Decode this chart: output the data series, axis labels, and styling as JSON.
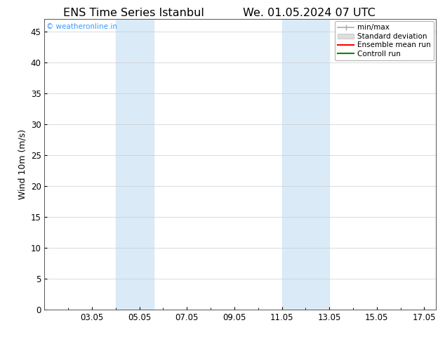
{
  "title_left": "ENS Time Series Istanbul",
  "title_right": "We. 01.05.2024 07 UTC",
  "ylabel": "Wind 10m (m/s)",
  "ylim": [
    0,
    47
  ],
  "yticks": [
    0,
    5,
    10,
    15,
    20,
    25,
    30,
    35,
    40,
    45
  ],
  "xlim": [
    1.0,
    17.5
  ],
  "xtick_labels": [
    "03.05",
    "05.05",
    "07.05",
    "09.05",
    "11.05",
    "13.05",
    "15.05",
    "17.05"
  ],
  "xtick_positions": [
    3,
    5,
    7,
    9,
    11,
    13,
    15,
    17
  ],
  "shaded_bands": [
    {
      "x_start": 4.0,
      "x_end": 5.6
    },
    {
      "x_start": 11.0,
      "x_end": 13.0
    }
  ],
  "shaded_color": "#daeaf7",
  "background_color": "#ffffff",
  "plot_bg_color": "#ffffff",
  "watermark_text": "© weatheronline.in",
  "watermark_color": "#3399ff",
  "legend_entries": [
    {
      "label": "min/max"
    },
    {
      "label": "Standard deviation"
    },
    {
      "label": "Ensemble mean run"
    },
    {
      "label": "Controll run"
    }
  ],
  "minmax_color": "#aaaaaa",
  "std_color": "#cccccc",
  "ens_color": "#ff0000",
  "ctrl_color": "#008800",
  "title_fontsize": 11.5,
  "axis_label_fontsize": 9,
  "tick_fontsize": 8.5,
  "legend_fontsize": 7.5,
  "watermark_fontsize": 7.5
}
